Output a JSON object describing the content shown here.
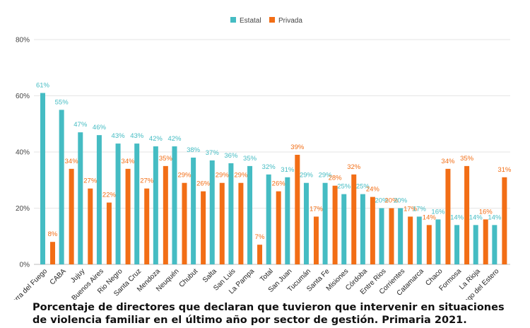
{
  "chart_data": {
    "type": "bar",
    "legend_position": "top-center",
    "grid": true,
    "ylim": [
      0,
      80
    ],
    "y_ticks": [
      "0%",
      "20%",
      "40%",
      "60%",
      "80%"
    ],
    "categories": [
      "Tierra del Fuego",
      "CABA",
      "Jujuy",
      "Buenos Aires",
      "Rio Negro",
      "Santa Cruz",
      "Mendoza",
      "Neuquén",
      "Chubut",
      "Salta",
      "San Luis",
      "La Pampa",
      "Total",
      "San Juan",
      "Tucumán",
      "Santa Fe",
      "Misiones",
      "Córdoba",
      "Entre Rios",
      "Corrientes",
      "Catamarca",
      "Chaco",
      "Formosa",
      "La Rioja",
      "Santiago del Estero"
    ],
    "series": [
      {
        "name": "Estatal",
        "color": "#45bcc3",
        "values": [
          61,
          55,
          47,
          46,
          43,
          43,
          42,
          42,
          38,
          37,
          36,
          35,
          32,
          31,
          29,
          29,
          25,
          25,
          20,
          20,
          17,
          16,
          14,
          14,
          14
        ]
      },
      {
        "name": "Privada",
        "color": "#f26e16",
        "values": [
          8,
          34,
          27,
          22,
          34,
          27,
          35,
          29,
          26,
          29,
          29,
          7,
          26,
          39,
          17,
          28,
          32,
          24,
          20,
          17,
          14,
          34,
          35,
          16,
          31
        ]
      }
    ],
    "title": "Porcentaje de directores que declaran que tuvieron que intervenir en situaciones de violencia familiar en el último año por sector de gestión. Primaria 2021."
  }
}
